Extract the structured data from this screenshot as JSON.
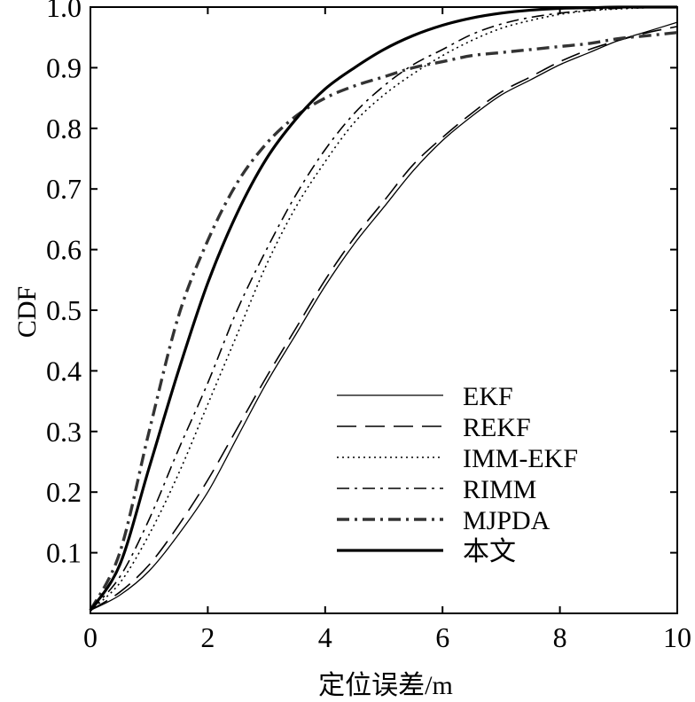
{
  "chart_data": {
    "type": "line",
    "title": "",
    "xlabel": "定位误差/m",
    "ylabel": "CDF",
    "xlim": [
      0,
      10
    ],
    "ylim": [
      0,
      1.0
    ],
    "xticks": [
      0,
      2,
      4,
      6,
      8,
      10
    ],
    "xtick_labels": [
      "0",
      "2",
      "4",
      "6",
      "8",
      "10"
    ],
    "yticks": [
      0.1,
      0.2,
      0.3,
      0.4,
      0.5,
      0.6,
      0.7,
      0.8,
      0.9,
      1.0
    ],
    "ytick_labels": [
      "0.1",
      "0.2",
      "0.3",
      "0.4",
      "0.5",
      "0.6",
      "0.7",
      "0.8",
      "0.9",
      "1.0"
    ],
    "grid": false,
    "legend_position": "bottom-right",
    "x": [
      0,
      0.5,
      1,
      1.5,
      2,
      2.5,
      3,
      3.5,
      4,
      4.5,
      5,
      5.5,
      6,
      6.5,
      7,
      7.5,
      8,
      8.5,
      9,
      9.5,
      10
    ],
    "series": [
      {
        "name": "EKF",
        "style": "solid-thin",
        "color": "#000000",
        "values": [
          0.005,
          0.03,
          0.07,
          0.13,
          0.2,
          0.29,
          0.38,
          0.46,
          0.54,
          0.61,
          0.67,
          0.73,
          0.78,
          0.82,
          0.855,
          0.88,
          0.905,
          0.925,
          0.945,
          0.96,
          0.975
        ]
      },
      {
        "name": "REKF",
        "style": "dashed",
        "color": "#000000",
        "values": [
          0.005,
          0.035,
          0.08,
          0.145,
          0.22,
          0.305,
          0.39,
          0.47,
          0.55,
          0.62,
          0.68,
          0.74,
          0.785,
          0.825,
          0.86,
          0.885,
          0.91,
          0.93,
          0.945,
          0.958,
          0.968
        ]
      },
      {
        "name": "IMM-EKF",
        "style": "dotted",
        "color": "#000000",
        "values": [
          0.005,
          0.05,
          0.13,
          0.23,
          0.345,
          0.46,
          0.575,
          0.67,
          0.745,
          0.81,
          0.855,
          0.89,
          0.92,
          0.945,
          0.965,
          0.978,
          0.988,
          0.994,
          0.997,
          0.999,
          1.0
        ]
      },
      {
        "name": "RIMM",
        "style": "dashdot",
        "color": "#000000",
        "values": [
          0.005,
          0.06,
          0.155,
          0.27,
          0.38,
          0.5,
          0.6,
          0.69,
          0.765,
          0.825,
          0.87,
          0.905,
          0.93,
          0.955,
          0.972,
          0.983,
          0.99,
          0.995,
          0.998,
          0.999,
          1.0
        ]
      },
      {
        "name": "MJPDA",
        "style": "dashdot-thick",
        "color": "#333333",
        "values": [
          0.005,
          0.1,
          0.3,
          0.49,
          0.615,
          0.71,
          0.775,
          0.82,
          0.85,
          0.87,
          0.885,
          0.9,
          0.91,
          0.92,
          0.925,
          0.93,
          0.935,
          0.94,
          0.948,
          0.953,
          0.958
        ]
      },
      {
        "name": "本文",
        "style": "solid-thick",
        "color": "#000000",
        "values": [
          0.005,
          0.08,
          0.24,
          0.4,
          0.545,
          0.66,
          0.75,
          0.815,
          0.865,
          0.9,
          0.93,
          0.953,
          0.97,
          0.982,
          0.99,
          0.995,
          0.998,
          0.999,
          1.0,
          1.0,
          1.0
        ]
      }
    ]
  }
}
